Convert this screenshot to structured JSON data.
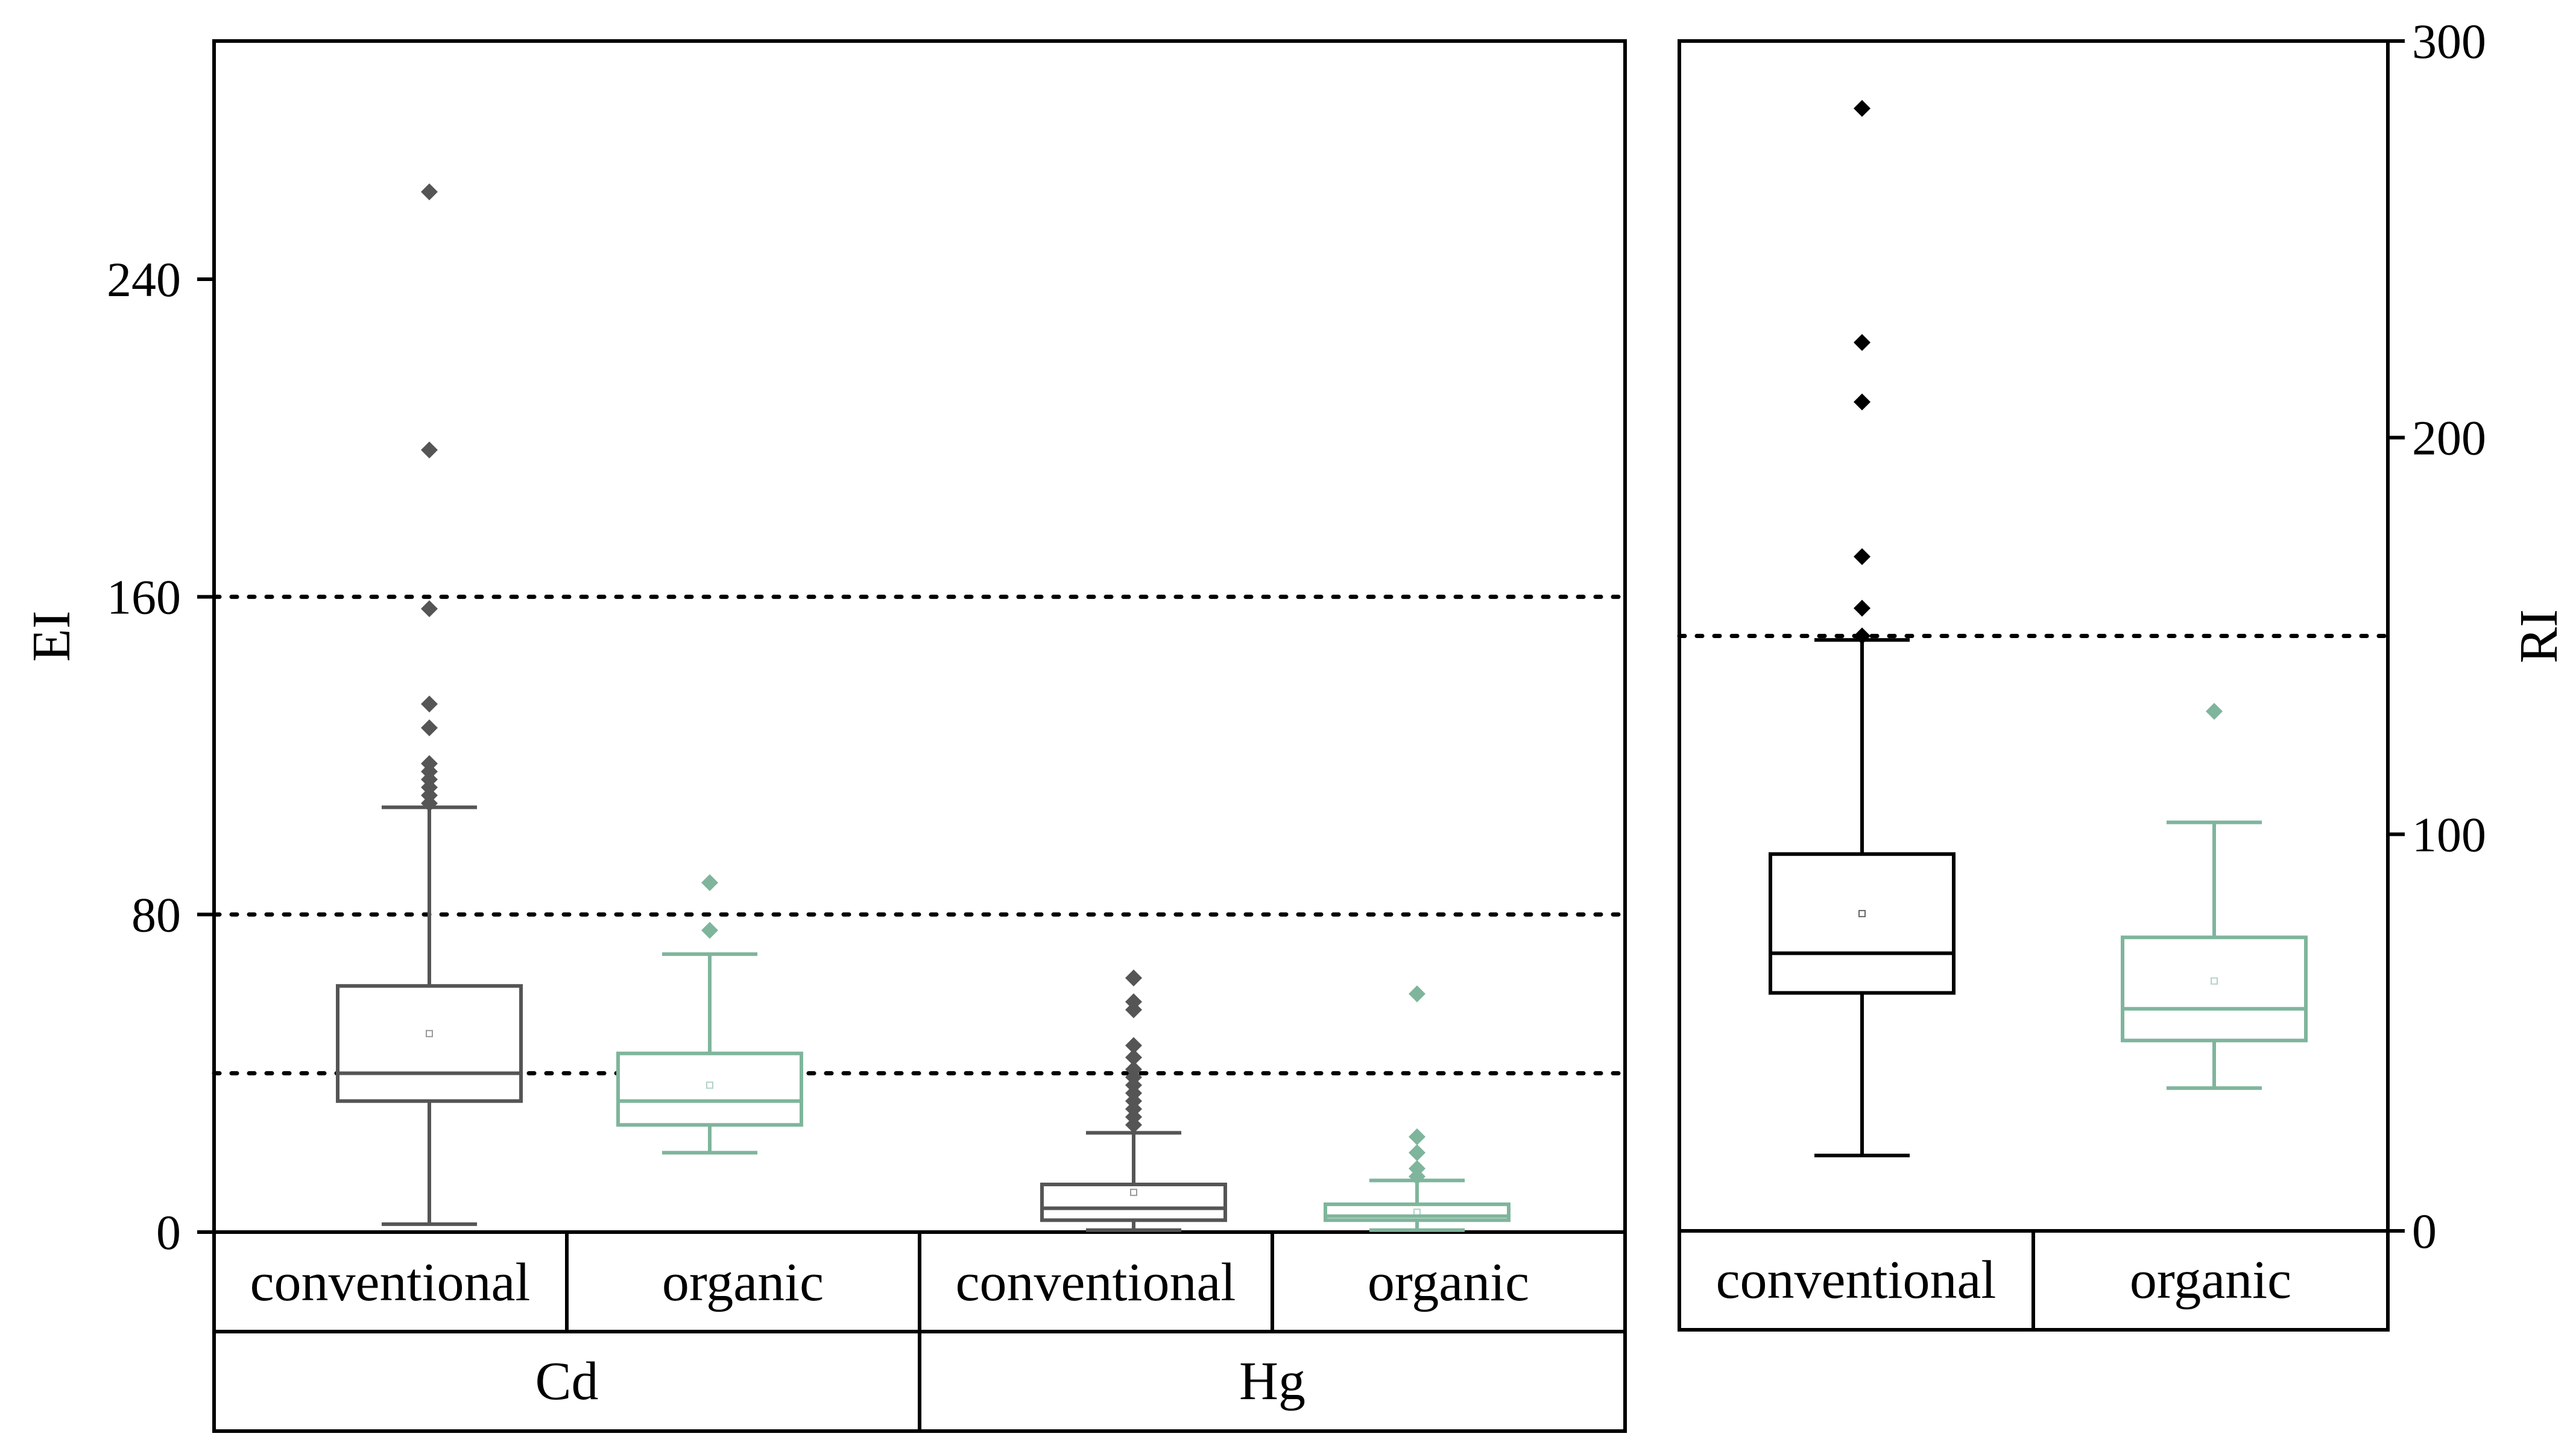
{
  "chart_data": [
    {
      "type": "box",
      "panel": "left",
      "ylabel": "EI",
      "ylim": [
        0,
        300
      ],
      "yticks": [
        0,
        80,
        160,
        240
      ],
      "reference_lines": [
        40,
        80,
        160
      ],
      "groups": [
        {
          "name": "Cd",
          "boxes": [
            {
              "category": "conventional",
              "color": "#555555",
              "q1": 33,
              "median": 40,
              "q3": 62,
              "whisker_low": 2,
              "whisker_high": 107,
              "mean": 50,
              "outliers": [
                262,
                197,
                157,
                133,
                127,
                118,
                116,
                114,
                112,
                110,
                108
              ]
            },
            {
              "category": "organic",
              "color": "#7fb59c",
              "q1": 27,
              "median": 33,
              "q3": 45,
              "whisker_low": 20,
              "whisker_high": 70,
              "mean": 37,
              "outliers": [
                88,
                76
              ]
            }
          ]
        },
        {
          "name": "Hg",
          "boxes": [
            {
              "category": "conventional",
              "color": "#555555",
              "q1": 3,
              "median": 6,
              "q3": 12,
              "whisker_low": 0.5,
              "whisker_high": 25,
              "mean": 10,
              "outliers": [
                64,
                58,
                56,
                47,
                44,
                41,
                39,
                37,
                35,
                33,
                31,
                29,
                27
              ]
            },
            {
              "category": "organic",
              "color": "#7fb59c",
              "q1": 3,
              "median": 4,
              "q3": 7,
              "whisker_low": 0.5,
              "whisker_high": 13,
              "mean": 5,
              "outliers": [
                60,
                24,
                20,
                16,
                14
              ]
            }
          ]
        }
      ]
    },
    {
      "type": "box",
      "panel": "right",
      "ylabel": "RI",
      "ylim": [
        0,
        300
      ],
      "yticks": [
        0,
        100,
        200,
        300
      ],
      "reference_lines": [
        150
      ],
      "groups": [
        {
          "name": "",
          "boxes": [
            {
              "category": "conventional",
              "color": "#000000",
              "q1": 60,
              "median": 70,
              "q3": 95,
              "whisker_low": 19,
              "whisker_high": 149,
              "mean": 80,
              "outliers": [
                283,
                224,
                209,
                170,
                157,
                150
              ]
            },
            {
              "category": "organic",
              "color": "#7fb59c",
              "q1": 48,
              "median": 56,
              "q3": 74,
              "whisker_low": 36,
              "whisker_high": 103,
              "mean": 63,
              "outliers": [
                131
              ]
            }
          ]
        }
      ]
    }
  ]
}
